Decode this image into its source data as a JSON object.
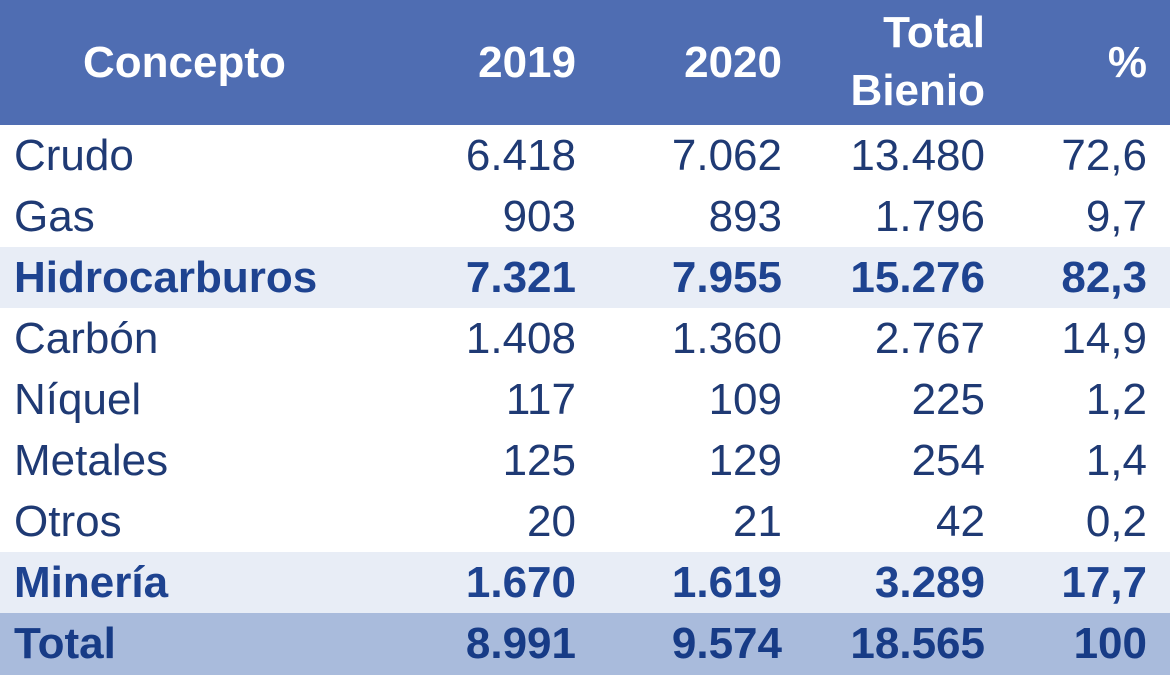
{
  "chart_data": {
    "type": "table",
    "columns": [
      "Concepto",
      "2019",
      "2020",
      "Total Bienio",
      "%"
    ],
    "header": {
      "concepto": "Concepto",
      "y2019": "2019",
      "y2020": "2020",
      "total_line1": "Total",
      "total_line2": "Bienio",
      "pct": "%"
    },
    "rows": [
      {
        "label": "Crudo",
        "y2019": "6.418",
        "y2020": "7.062",
        "total": "13.480",
        "pct": "72,6",
        "style": "normal"
      },
      {
        "label": "Gas",
        "y2019": "903",
        "y2020": "893",
        "total": "1.796",
        "pct": "9,7",
        "style": "normal"
      },
      {
        "label": "Hidrocarburos",
        "y2019": "7.321",
        "y2020": "7.955",
        "total": "15.276",
        "pct": "82,3",
        "style": "subtotal"
      },
      {
        "label": "Carbón",
        "y2019": "1.408",
        "y2020": "1.360",
        "total": "2.767",
        "pct": "14,9",
        "style": "normal"
      },
      {
        "label": "Níquel",
        "y2019": "117",
        "y2020": "109",
        "total": "225",
        "pct": "1,2",
        "style": "normal"
      },
      {
        "label": "Metales",
        "y2019": "125",
        "y2020": "129",
        "total": "254",
        "pct": "1,4",
        "style": "normal"
      },
      {
        "label": "Otros",
        "y2019": "20",
        "y2020": "21",
        "total": "42",
        "pct": "0,2",
        "style": "normal"
      },
      {
        "label": "Minería",
        "y2019": "1.670",
        "y2020": "1.619",
        "total": "3.289",
        "pct": "17,7",
        "style": "subtotal"
      },
      {
        "label": "Total",
        "y2019": "8.991",
        "y2020": "9.574",
        "total": "18.565",
        "pct": "100",
        "style": "total"
      }
    ]
  },
  "colors": {
    "header_bg": "#4f6db2",
    "subtotal_bg": "#e8edf6",
    "total_bg": "#a9bbdc",
    "text": "#1f3a74"
  }
}
